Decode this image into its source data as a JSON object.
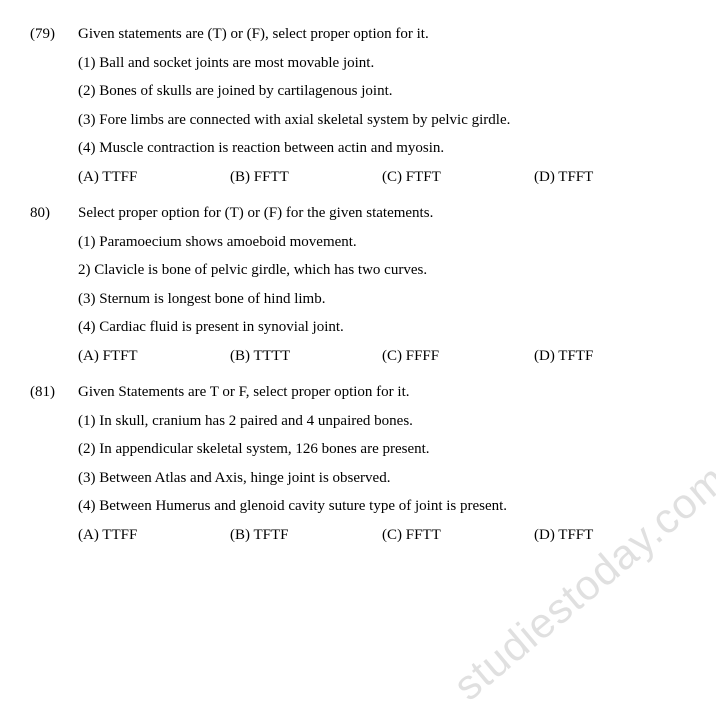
{
  "watermark": "studiestoday.com",
  "questions": [
    {
      "num": "(79)",
      "prompt": "Given statements are (T) or (F), select proper option for it.",
      "statements": [
        "(1) Ball and socket joints are most movable joint.",
        "(2) Bones of skulls are joined by cartilagenous joint.",
        "(3) Fore limbs are connected with axial skeletal system by pelvic girdle.",
        "(4) Muscle contraction is reaction between actin and myosin."
      ],
      "options": [
        "(A) TTFF",
        "(B) FFTT",
        "(C) FTFT",
        "(D) TFFT"
      ]
    },
    {
      "num": "80)",
      "prompt": "Select proper option for (T) or (F) for the given statements.",
      "statements": [
        "(1) Paramoecium shows amoeboid movement.",
        "2) Clavicle is bone of pelvic girdle, which has two curves.",
        "(3) Sternum is longest bone of hind limb.",
        "(4) Cardiac fluid is present in synovial joint."
      ],
      "options": [
        "(A) FTFT",
        "(B) TTTT",
        "(C) FFFF",
        "(D) TFTF"
      ]
    },
    {
      "num": "(81)",
      "prompt": "Given Statements are T or F, select proper option for it.",
      "statements": [
        "(1) In skull, cranium has 2 paired and 4 unpaired bones.",
        "(2) In appendicular skeletal system, 126 bones are present.",
        "(3) Between Atlas and Axis, hinge joint is observed.",
        "(4) Between Humerus and glenoid cavity suture type of joint is present."
      ],
      "options": [
        "(A) TTFF",
        "(B) TFTF",
        "(C) FFTT",
        "(D) TFFT"
      ]
    }
  ]
}
